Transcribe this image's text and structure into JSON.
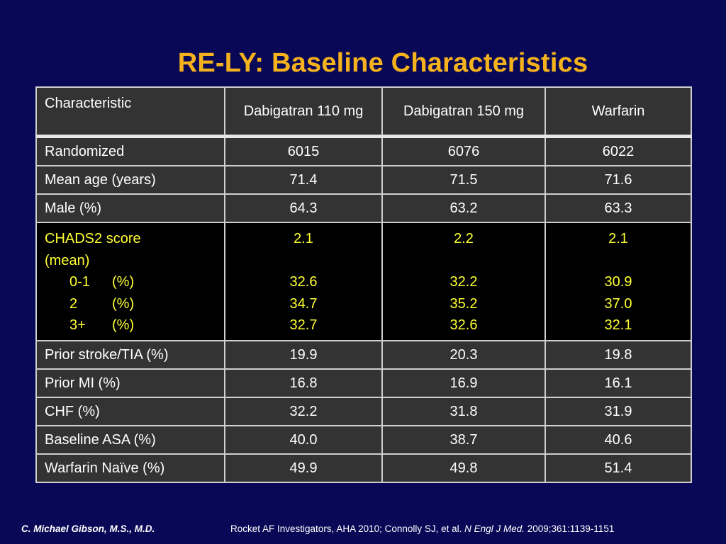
{
  "title": "RE-LY: Baseline Characteristics",
  "table": {
    "headers": [
      "Characteristic",
      "Dabigatran 110 mg",
      "Dabigatran 150 mg",
      "Warfarin"
    ],
    "rows": [
      {
        "label": "Randomized",
        "values": [
          "6015",
          "6076",
          "6022"
        ]
      },
      {
        "label": "Mean age (years)",
        "values": [
          "71.4",
          "71.5",
          "71.6"
        ]
      },
      {
        "label": "Male (%)",
        "values": [
          "64.3",
          "63.2",
          "63.3"
        ]
      }
    ],
    "chads": {
      "label_line1": "CHADS2 score",
      "label_line2": "(mean)",
      "sub_labels": [
        "0-1",
        "2",
        "3+"
      ],
      "sub_unit": "(%)",
      "mean_values": [
        "2.1",
        "2.2",
        "2.1"
      ],
      "category_values": [
        [
          "32.6",
          "34.7",
          "32.7"
        ],
        [
          "32.2",
          "35.2",
          "32.6"
        ],
        [
          "30.9",
          "37.0",
          "32.1"
        ]
      ]
    },
    "rows_after": [
      {
        "label": "Prior stroke/TIA (%)",
        "values": [
          "19.9",
          "20.3",
          "19.8"
        ]
      },
      {
        "label": "Prior MI (%)",
        "values": [
          "16.8",
          "16.9",
          "16.1"
        ]
      },
      {
        "label": "CHF (%)",
        "values": [
          "32.2",
          "31.8",
          "31.9"
        ]
      },
      {
        "label": "Baseline ASA (%)",
        "values": [
          "40.0",
          "38.7",
          "40.6"
        ]
      },
      {
        "label": "Warfarin Naïve (%)",
        "values": [
          "49.9",
          "49.8",
          "51.4"
        ]
      }
    ]
  },
  "footer": {
    "author": "C. Michael Gibson, M.S., M.D.",
    "citation_prefix": "Rocket AF Investigators, AHA 2010; Connolly SJ, et al. ",
    "journal": "N Engl J Med.",
    "citation_suffix": " 2009;361:1139-1151"
  },
  "colors": {
    "background": "#080856",
    "title": "#f5b21c",
    "table_cell": "#333333",
    "highlight_row": "#000000",
    "highlight_text": "#ffff33"
  }
}
